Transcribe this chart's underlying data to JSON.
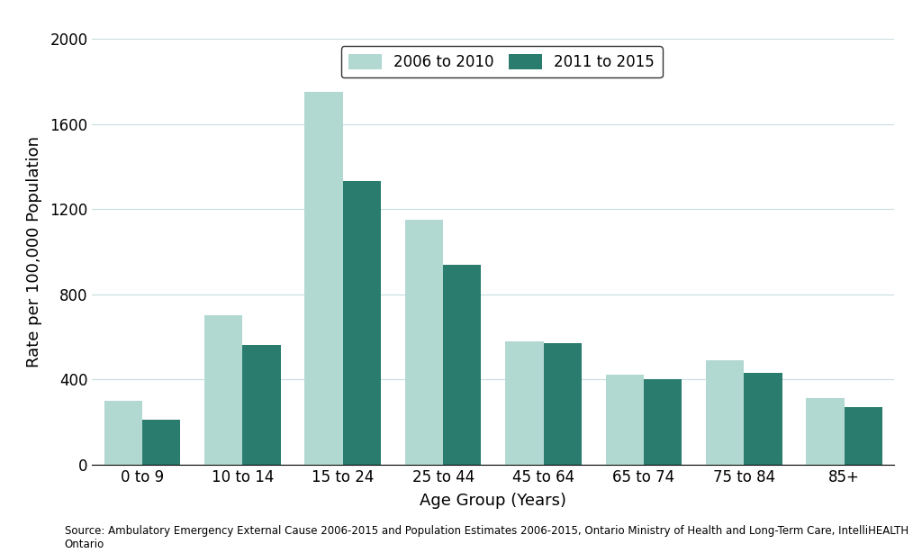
{
  "categories": [
    "0 to 9",
    "10 to 14",
    "15 to 24",
    "25 to 44",
    "45 to 64",
    "65 to 74",
    "75 to 84",
    "85+"
  ],
  "series": [
    {
      "label": "2006 to 2010",
      "values": [
        300,
        700,
        1750,
        1150,
        580,
        420,
        490,
        310
      ],
      "color": "#b2d8d2"
    },
    {
      "label": "2011 to 2015",
      "values": [
        210,
        560,
        1330,
        940,
        570,
        400,
        430,
        270
      ],
      "color": "#2a7d6e"
    }
  ],
  "xlabel": "Age Group (Years)",
  "ylabel": "Rate per 100,000 Population",
  "ylim": [
    0,
    2000
  ],
  "yticks": [
    0,
    400,
    800,
    1200,
    1600,
    2000
  ],
  "footnote": "Source: Ambulatory Emergency External Cause 2006-2015 and Population Estimates 2006-2015, Ontario Ministry of Health and Long-Term Care, IntelliHEALTH Ontario",
  "background_color": "#ffffff",
  "grid_color": "#c8dde0",
  "bar_width": 0.38,
  "axis_fontsize": 13,
  "tick_fontsize": 12,
  "legend_fontsize": 12,
  "footnote_fontsize": 8.5
}
